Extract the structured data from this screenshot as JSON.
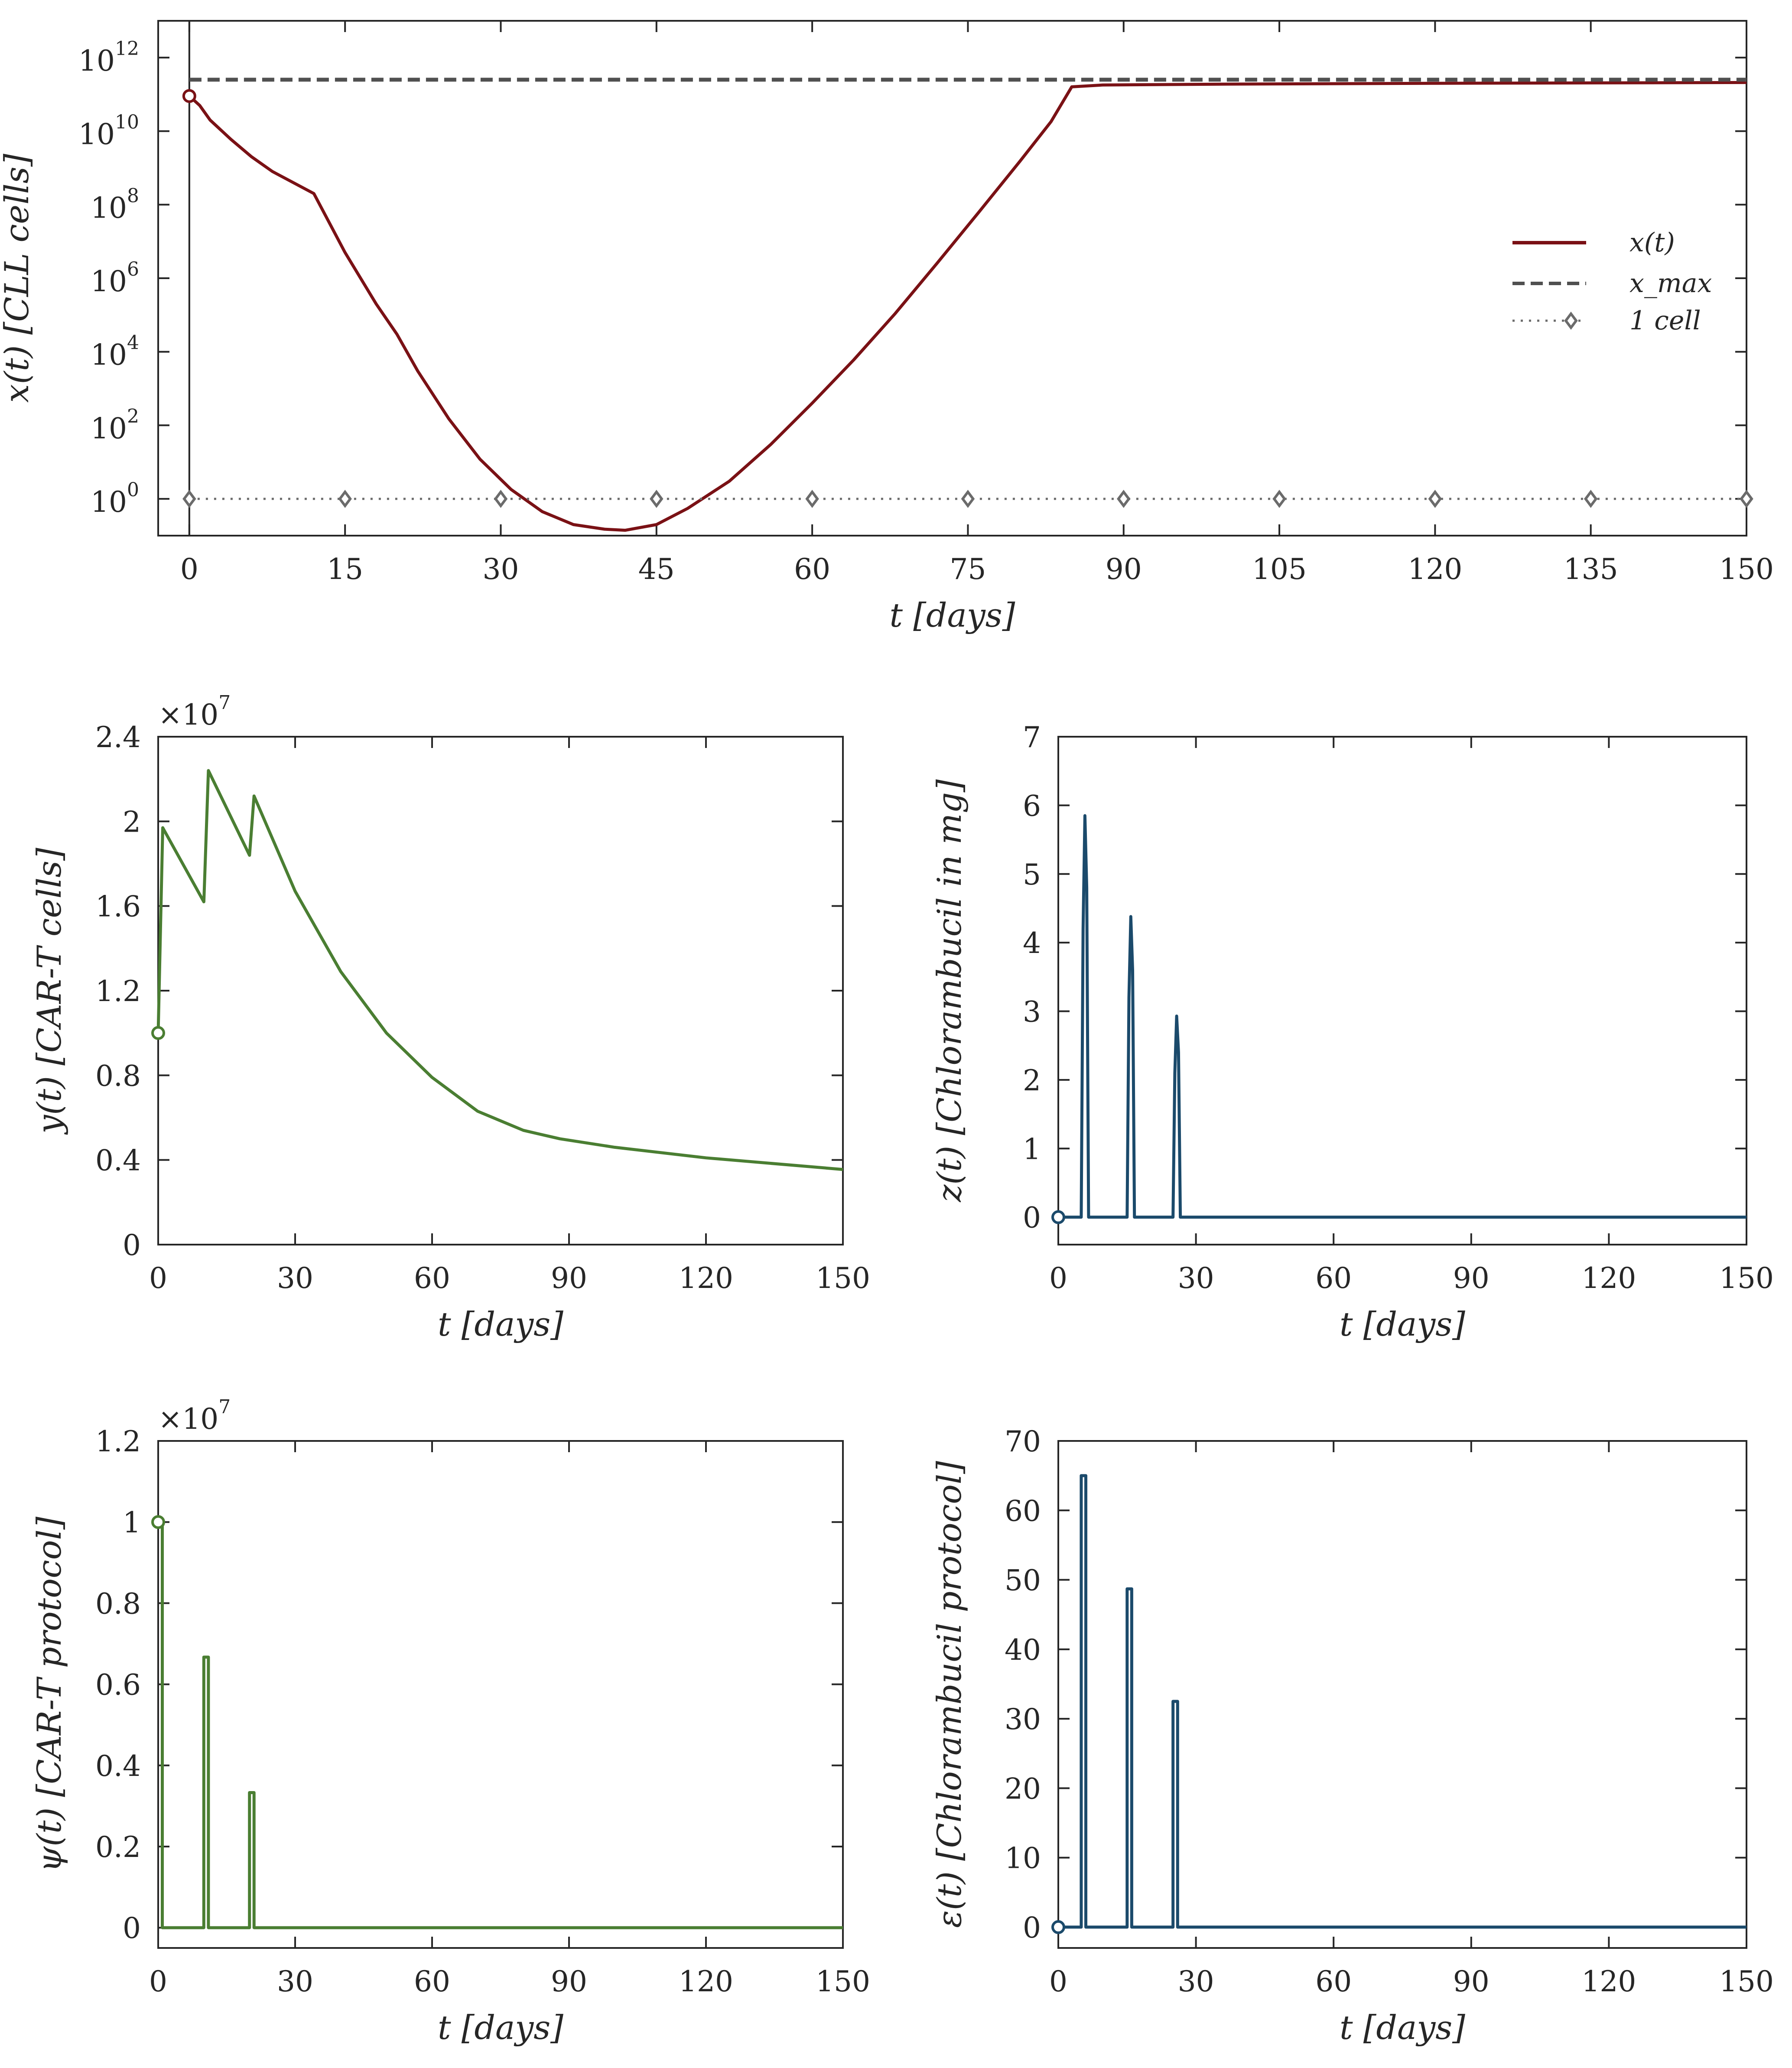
{
  "chart_data": [
    {
      "id": "x",
      "type": "line",
      "yscale": "log",
      "xlabel": "t [days]",
      "ylabel": "x(t) [CLL cells]",
      "xlim": [
        -3,
        150
      ],
      "ylim": [
        0.1,
        10000000000000.0
      ],
      "xticks": [
        0,
        15,
        30,
        45,
        60,
        75,
        90,
        105,
        120,
        135,
        150
      ],
      "yticks": [
        {
          "base": "10",
          "exp": "0",
          "value": 1
        },
        {
          "base": "10",
          "exp": "2",
          "value": 100
        },
        {
          "base": "10",
          "exp": "4",
          "value": 10000
        },
        {
          "base": "10",
          "exp": "6",
          "value": 1000000
        },
        {
          "base": "10",
          "exp": "8",
          "value": 100000000
        },
        {
          "base": "10",
          "exp": "10",
          "value": 10000000000
        },
        {
          "base": "10",
          "exp": "12",
          "value": 1000000000000
        }
      ],
      "legend": {
        "position": "right",
        "entries": [
          "x(t)",
          "x_max",
          "1 cell"
        ]
      },
      "series": [
        {
          "name": "x(t)",
          "color": "#7a1115",
          "style": "solid",
          "x": [
            0,
            1,
            2,
            4,
            6,
            8,
            10,
            12,
            15,
            18,
            20,
            22,
            25,
            28,
            31,
            34,
            37,
            40,
            42,
            45,
            48,
            52,
            56,
            60,
            64,
            68,
            72,
            76,
            80,
            83,
            85,
            88,
            100,
            120,
            150
          ],
          "y": [
            90000000000.0,
            50000000000.0,
            20000000000.0,
            6000000000.0,
            2000000000.0,
            800000000.0,
            400000000.0,
            200000000.0,
            5000000.0,
            200000.0,
            30000.0,
            3000.0,
            150.0,
            12.0,
            1.8,
            0.45,
            0.2,
            0.15,
            0.14,
            0.2,
            0.55,
            3,
            30,
            400,
            6000.0,
            110000.0,
            2500000.0,
            60000000.0,
            1500000000.0,
            18000000000.0,
            160000000000.0,
            180000000000.0,
            190000000000.0,
            200000000000.0,
            210000000000.0
          ]
        },
        {
          "name": "x_max",
          "color": "#505050",
          "style": "dashed",
          "x": [
            0,
            150
          ],
          "y": [
            250000000000.0,
            250000000000.0
          ]
        },
        {
          "name": "1 cell",
          "color": "#6b6b6b",
          "style": "dotted",
          "marker": "diamond",
          "x": [
            0,
            15,
            30,
            45,
            60,
            75,
            90,
            105,
            120,
            135,
            150
          ],
          "y": [
            1,
            1,
            1,
            1,
            1,
            1,
            1,
            1,
            1,
            1,
            1
          ]
        }
      ],
      "annotations": [
        {
          "type": "vline",
          "x": 0
        },
        {
          "type": "start-marker",
          "x": 0,
          "y": 90000000000.0
        }
      ]
    },
    {
      "id": "y",
      "type": "line",
      "xlabel": "t [days]",
      "ylabel": "y(t) [CAR-T cells]",
      "multiplier": "×10",
      "multiplier_exp": "7",
      "xlim": [
        0,
        150
      ],
      "ylim": [
        0,
        2.4
      ],
      "xticks": [
        0,
        30,
        60,
        90,
        120,
        150
      ],
      "yticks": [
        "0",
        "0.4",
        "0.8",
        "1.2",
        "1.6",
        "2",
        "2.4"
      ],
      "series": [
        {
          "name": "y(t)",
          "color": "#4a7e32",
          "x": [
            0,
            1,
            10,
            10.01,
            11,
            20,
            20.01,
            21,
            30,
            40,
            50,
            60,
            70,
            80,
            84,
            88,
            100,
            120,
            150
          ],
          "y": [
            1.0,
            1.97,
            1.62,
            1.62,
            2.24,
            1.84,
            1.84,
            2.12,
            1.67,
            1.29,
            1.0,
            0.79,
            0.63,
            0.54,
            0.52,
            0.5,
            0.46,
            0.41,
            0.355
          ]
        }
      ],
      "annotations": [
        {
          "type": "start-marker",
          "x": 0,
          "y": 1.0
        }
      ]
    },
    {
      "id": "z",
      "type": "line",
      "xlabel": "t [days]",
      "ylabel": "z(t) [Chlorambucil in mg]",
      "xlim": [
        0,
        150
      ],
      "ylim": [
        -0.4,
        7
      ],
      "xticks": [
        0,
        30,
        60,
        90,
        120,
        150
      ],
      "yticks": [
        "0",
        "1",
        "2",
        "3",
        "4",
        "5",
        "6",
        "7"
      ],
      "series": [
        {
          "name": "z(t)",
          "color": "#1b4a6b",
          "x": [
            0,
            5,
            5.4,
            5.8,
            6.2,
            6.6,
            15,
            15.4,
            15.8,
            16.2,
            16.6,
            25,
            25.4,
            25.8,
            26.2,
            26.6,
            150
          ],
          "y": [
            0,
            0,
            4.2,
            5.85,
            4.8,
            0,
            0,
            3.2,
            4.38,
            3.6,
            0,
            0,
            2.1,
            2.93,
            2.4,
            0,
            0
          ]
        }
      ],
      "annotations": [
        {
          "type": "start-marker",
          "x": 0,
          "y": 0
        }
      ]
    },
    {
      "id": "psi",
      "type": "line",
      "xlabel": "t [days]",
      "ylabel": "ψ(t) [CAR-T protocol]",
      "multiplier": "×10",
      "multiplier_exp": "7",
      "xlim": [
        0,
        150
      ],
      "ylim": [
        -0.05,
        1.2
      ],
      "xticks": [
        0,
        30,
        60,
        90,
        120,
        150
      ],
      "yticks": [
        "0",
        "0.2",
        "0.4",
        "0.6",
        "0.8",
        "1",
        "1.2"
      ],
      "series": [
        {
          "name": "ψ(t)",
          "color": "#4a7e32",
          "x": [
            0,
            0.9,
            0.9,
            10,
            10,
            11,
            11,
            20,
            20,
            21,
            21,
            150
          ],
          "y": [
            1.0,
            1.0,
            0,
            0,
            0.667,
            0.667,
            0,
            0,
            0.333,
            0.333,
            0,
            0
          ]
        }
      ],
      "annotations": [
        {
          "type": "start-marker",
          "x": 0,
          "y": 1.0
        }
      ]
    },
    {
      "id": "eps",
      "type": "line",
      "xlabel": "t [days]",
      "ylabel": "ε(t) [Chlorambucil protocol]",
      "xlim": [
        0,
        150
      ],
      "ylim": [
        -3,
        70
      ],
      "xticks": [
        0,
        30,
        60,
        90,
        120,
        150
      ],
      "yticks": [
        "0",
        "10",
        "20",
        "30",
        "40",
        "50",
        "60",
        "70"
      ],
      "series": [
        {
          "name": "ε(t)",
          "color": "#1b4a6b",
          "x": [
            0,
            5,
            5,
            6,
            6,
            15,
            15,
            16,
            16,
            25,
            25,
            26,
            26,
            150
          ],
          "y": [
            0,
            0,
            65,
            65,
            0,
            0,
            48.7,
            48.7,
            0,
            0,
            32.5,
            32.5,
            0,
            0
          ]
        }
      ],
      "annotations": [
        {
          "type": "start-marker",
          "x": 0,
          "y": 0
        }
      ]
    }
  ]
}
